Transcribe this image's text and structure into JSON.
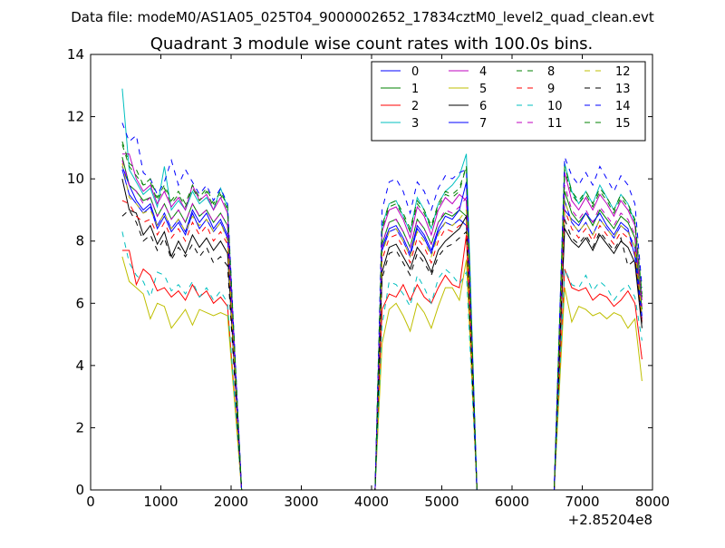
{
  "chart_data": {
    "type": "line",
    "suptitle": "Data file: modeM0/AS1A05_025T04_9000002652_17834cztM0_level2_quad_clean.evt",
    "title": "Quadrant 3 module wise count rates with 100.0s bins.",
    "xlabel": "",
    "ylabel": "",
    "x_offset_label": "+2.85204e8",
    "xlim": [
      0,
      8000
    ],
    "ylim": [
      0,
      14
    ],
    "x_ticks": [
      0,
      1000,
      2000,
      3000,
      4000,
      5000,
      6000,
      7000,
      8000
    ],
    "y_ticks": [
      0,
      2,
      4,
      6,
      8,
      10,
      12,
      14
    ],
    "grid": false,
    "legend_position": "top-right",
    "legend_columns": 4,
    "segments": [
      {
        "x_start": 450,
        "x_step": 100,
        "n": 16
      },
      {
        "x_start": 4150,
        "x_step": 100,
        "n": 13
      },
      {
        "x_start": 6750,
        "x_step": 100,
        "n": 12
      }
    ],
    "gap_x": [
      2150,
      2250,
      2400,
      2600,
      2800,
      3000,
      3200,
      3400,
      3600,
      3800,
      4000,
      4050,
      5500,
      5550,
      5700,
      5900,
      6100,
      6300,
      6500,
      6600
    ],
    "series": [
      {
        "name": "0",
        "color": "#0000ff",
        "dash": false,
        "seg_values": [
          [
            10.3,
            9.5,
            9.2,
            8.9,
            9.1,
            8.4,
            8.8,
            8.3,
            8.6,
            8.2,
            8.9,
            8.4,
            8.7,
            8.3,
            8.6,
            8.1
          ],
          [
            7.7,
            8.3,
            8.4,
            8.0,
            7.5,
            8.4,
            8.1,
            7.6,
            8.3,
            8.6,
            8.5,
            8.7,
            8.5
          ],
          [
            9.3,
            8.6,
            8.3,
            8.6,
            8.2,
            8.7,
            8.4,
            8.1,
            8.5,
            8.3,
            7.8,
            5.6
          ]
        ]
      },
      {
        "name": "1",
        "color": "#008000",
        "dash": false,
        "seg_values": [
          [
            10.7,
            9.8,
            9.6,
            9.3,
            9.4,
            8.8,
            9.2,
            8.7,
            9.0,
            8.6,
            9.2,
            8.8,
            9.0,
            8.6,
            8.9,
            8.5
          ],
          [
            7.9,
            8.6,
            8.7,
            8.3,
            7.8,
            8.7,
            8.4,
            7.9,
            8.6,
            8.9,
            8.8,
            9.0,
            8.8
          ],
          [
            9.6,
            8.9,
            8.6,
            8.9,
            8.5,
            9.0,
            8.7,
            8.4,
            8.8,
            8.6,
            8.1,
            5.8
          ]
        ]
      },
      {
        "name": "2",
        "color": "#ff0000",
        "dash": false,
        "seg_values": [
          [
            7.7,
            7.7,
            6.6,
            7.1,
            6.9,
            6.4,
            6.5,
            6.2,
            6.4,
            6.1,
            6.6,
            6.2,
            6.4,
            6.0,
            6.2,
            5.9
          ],
          [
            5.8,
            6.3,
            6.2,
            6.6,
            6.1,
            6.6,
            6.2,
            6.0,
            6.5,
            6.9,
            6.6,
            6.5,
            8.2
          ],
          [
            7.1,
            6.5,
            6.4,
            6.5,
            6.1,
            6.3,
            6.2,
            5.9,
            6.1,
            6.4,
            6.0,
            4.2
          ]
        ]
      },
      {
        "name": "3",
        "color": "#00bfbf",
        "dash": false,
        "seg_values": [
          [
            12.9,
            10.3,
            9.9,
            9.5,
            9.7,
            9.1,
            10.4,
            9.0,
            9.3,
            9.0,
            9.6,
            9.2,
            9.4,
            9.0,
            9.7,
            9.1
          ],
          [
            8.5,
            9.2,
            9.3,
            8.8,
            8.3,
            9.4,
            9.0,
            8.4,
            9.2,
            9.6,
            9.8,
            10.1,
            10.8
          ],
          [
            10.5,
            9.6,
            9.2,
            9.6,
            9.2,
            9.8,
            9.4,
            9.0,
            9.5,
            9.2,
            8.6,
            6.2
          ]
        ]
      },
      {
        "name": "4",
        "color": "#bf00bf",
        "dash": false,
        "seg_values": [
          [
            10.8,
            10.8,
            10.0,
            9.6,
            9.8,
            9.2,
            9.6,
            9.1,
            9.4,
            9.0,
            9.8,
            9.3,
            9.5,
            9.0,
            9.4,
            8.9
          ],
          [
            8.3,
            9.0,
            9.1,
            8.7,
            8.1,
            9.1,
            8.8,
            8.2,
            9.0,
            9.4,
            9.2,
            9.5,
            9.3
          ],
          [
            10.2,
            9.3,
            9.0,
            9.4,
            9.0,
            9.5,
            9.2,
            8.8,
            9.3,
            9.0,
            8.5,
            6.1
          ]
        ]
      },
      {
        "name": "5",
        "color": "#bfbf00",
        "dash": false,
        "seg_values": [
          [
            7.5,
            6.7,
            6.5,
            6.3,
            5.5,
            6.0,
            5.9,
            5.2,
            5.5,
            5.8,
            5.3,
            5.8,
            5.7,
            5.6,
            5.7,
            5.6
          ],
          [
            4.7,
            5.8,
            6.0,
            5.6,
            5.1,
            6.0,
            5.7,
            5.2,
            5.9,
            6.5,
            6.5,
            6.1,
            7.4
          ],
          [
            6.5,
            5.4,
            5.9,
            5.8,
            5.6,
            5.7,
            5.5,
            5.7,
            5.6,
            5.2,
            5.5,
            3.5
          ]
        ]
      },
      {
        "name": "6",
        "color": "#000000",
        "dash": false,
        "seg_values": [
          [
            10.0,
            9.0,
            8.9,
            8.2,
            8.5,
            7.9,
            8.3,
            7.5,
            8.0,
            7.6,
            8.2,
            7.8,
            8.1,
            7.7,
            8.0,
            7.6
          ],
          [
            7.0,
            7.8,
            7.9,
            7.5,
            7.1,
            7.8,
            7.5,
            7.0,
            7.7,
            8.0,
            8.2,
            8.4,
            8.8
          ],
          [
            8.4,
            8.0,
            7.8,
            8.1,
            7.7,
            8.2,
            7.9,
            7.6,
            8.0,
            7.8,
            7.3,
            5.2
          ]
        ]
      },
      {
        "name": "7",
        "color": "#0000ff",
        "dash": false,
        "seg_values": [
          [
            10.4,
            9.8,
            9.3,
            9.0,
            9.2,
            8.5,
            8.9,
            8.4,
            8.7,
            8.3,
            9.0,
            8.6,
            8.9,
            8.4,
            8.7,
            8.2
          ],
          [
            7.8,
            8.4,
            8.5,
            8.1,
            7.6,
            8.5,
            8.2,
            7.7,
            8.4,
            8.8,
            8.7,
            9.0,
            9.9
          ],
          [
            9.0,
            8.7,
            8.5,
            8.9,
            8.6,
            8.9,
            8.5,
            8.2,
            8.6,
            8.4,
            7.5,
            5.5
          ]
        ]
      },
      {
        "name": "8",
        "color": "#008000",
        "dash": true,
        "seg_values": [
          [
            11.1,
            10.4,
            10.1,
            9.8,
            9.9,
            9.3,
            9.7,
            9.2,
            9.5,
            9.1,
            9.7,
            9.3,
            9.6,
            9.1,
            9.5,
            9.0
          ],
          [
            8.4,
            9.1,
            9.2,
            8.8,
            8.3,
            9.2,
            8.9,
            8.4,
            9.1,
            9.5,
            9.4,
            9.6,
            10.4
          ],
          [
            10.3,
            9.5,
            9.2,
            9.5,
            9.1,
            9.6,
            9.3,
            8.9,
            9.4,
            9.1,
            8.6,
            6.2
          ]
        ]
      },
      {
        "name": "9",
        "color": "#ff0000",
        "dash": true,
        "seg_values": [
          [
            9.3,
            9.2,
            8.8,
            8.6,
            8.7,
            8.2,
            8.6,
            8.1,
            8.4,
            8.0,
            8.6,
            8.2,
            8.5,
            8.0,
            8.3,
            7.9
          ],
          [
            7.4,
            8.1,
            8.2,
            7.8,
            7.3,
            8.1,
            7.8,
            7.3,
            8.0,
            8.4,
            8.3,
            8.5,
            8.6
          ],
          [
            9.0,
            8.4,
            8.1,
            8.4,
            8.0,
            8.5,
            8.2,
            7.9,
            8.3,
            8.1,
            7.6,
            5.4
          ]
        ]
      },
      {
        "name": "10",
        "color": "#00bfbf",
        "dash": true,
        "seg_values": [
          [
            8.3,
            7.3,
            6.9,
            6.7,
            6.2,
            7.0,
            6.9,
            6.4,
            6.6,
            6.3,
            6.7,
            6.2,
            6.5,
            6.1,
            6.4,
            6.0
          ],
          [
            5.3,
            6.7,
            6.6,
            6.3,
            5.9,
            6.9,
            6.5,
            6.0,
            6.8,
            7.1,
            6.9,
            6.6,
            7.0
          ],
          [
            7.1,
            6.6,
            6.5,
            6.9,
            6.4,
            6.7,
            6.5,
            6.1,
            6.4,
            6.6,
            6.2,
            4.8
          ]
        ]
      },
      {
        "name": "11",
        "color": "#bf00bf",
        "dash": true,
        "seg_values": [
          [
            10.6,
            9.8,
            9.6,
            9.2,
            9.4,
            8.8,
            9.2,
            8.7,
            9.0,
            8.6,
            9.2,
            8.8,
            9.0,
            8.6,
            8.9,
            8.5
          ],
          [
            7.9,
            8.6,
            8.7,
            8.3,
            7.8,
            8.7,
            8.4,
            7.9,
            8.6,
            9.0,
            8.9,
            9.1,
            9.4
          ],
          [
            9.8,
            9.0,
            8.7,
            9.0,
            8.6,
            9.1,
            8.8,
            8.5,
            8.9,
            8.7,
            8.2,
            5.9
          ]
        ]
      },
      {
        "name": "12",
        "color": "#bfbf00",
        "dash": true,
        "seg_values": [
          [
            10.5,
            9.4,
            9.2,
            8.9,
            9.0,
            8.5,
            8.9,
            8.4,
            8.7,
            8.3,
            8.8,
            8.5,
            8.7,
            8.3,
            8.6,
            8.0
          ],
          [
            7.6,
            8.3,
            8.4,
            8.0,
            7.5,
            8.3,
            8.0,
            7.5,
            8.2,
            8.6,
            8.5,
            8.7,
            9.0
          ],
          [
            9.3,
            8.6,
            8.3,
            8.6,
            8.2,
            8.7,
            8.4,
            8.1,
            8.5,
            8.3,
            7.8,
            5.6
          ]
        ]
      },
      {
        "name": "13",
        "color": "#000000",
        "dash": true,
        "seg_values": [
          [
            8.8,
            9.0,
            8.6,
            8.0,
            8.2,
            7.7,
            8.1,
            7.4,
            7.8,
            7.5,
            7.9,
            7.5,
            7.8,
            7.3,
            7.5,
            7.2
          ],
          [
            6.8,
            7.6,
            7.7,
            7.3,
            6.9,
            7.6,
            7.3,
            6.9,
            7.5,
            7.8,
            7.9,
            8.1,
            8.3
          ],
          [
            8.7,
            8.1,
            7.9,
            8.2,
            7.8,
            8.3,
            8.0,
            7.7,
            8.1,
            7.2,
            7.4,
            5.3
          ]
        ]
      },
      {
        "name": "14",
        "color": "#0000ff",
        "dash": true,
        "seg_values": [
          [
            11.8,
            11.2,
            11.4,
            10.2,
            10.0,
            9.5,
            9.9,
            10.6,
            9.8,
            10.3,
            9.9,
            9.5,
            9.8,
            9.3,
            9.7,
            9.2
          ],
          [
            9.0,
            9.9,
            10.0,
            9.6,
            8.9,
            9.9,
            9.6,
            9.0,
            9.7,
            10.1,
            10.0,
            10.2,
            10.3
          ],
          [
            10.7,
            10.1,
            9.8,
            10.2,
            9.8,
            10.4,
            10.0,
            9.6,
            10.1,
            9.8,
            9.2,
            6.5
          ]
        ]
      },
      {
        "name": "15",
        "color": "#008000",
        "dash": true,
        "seg_values": [
          [
            11.2,
            10.5,
            10.3,
            9.8,
            10.0,
            9.4,
            9.8,
            9.3,
            9.6,
            9.2,
            9.8,
            9.4,
            9.7,
            9.2,
            9.6,
            9.1
          ],
          [
            8.5,
            9.2,
            9.3,
            8.9,
            8.4,
            9.3,
            9.0,
            8.5,
            9.2,
            9.6,
            9.5,
            9.7,
            10.4
          ],
          [
            10.4,
            9.6,
            9.3,
            9.6,
            9.2,
            9.7,
            9.4,
            9.0,
            9.5,
            9.2,
            8.7,
            6.3
          ]
        ]
      }
    ]
  }
}
